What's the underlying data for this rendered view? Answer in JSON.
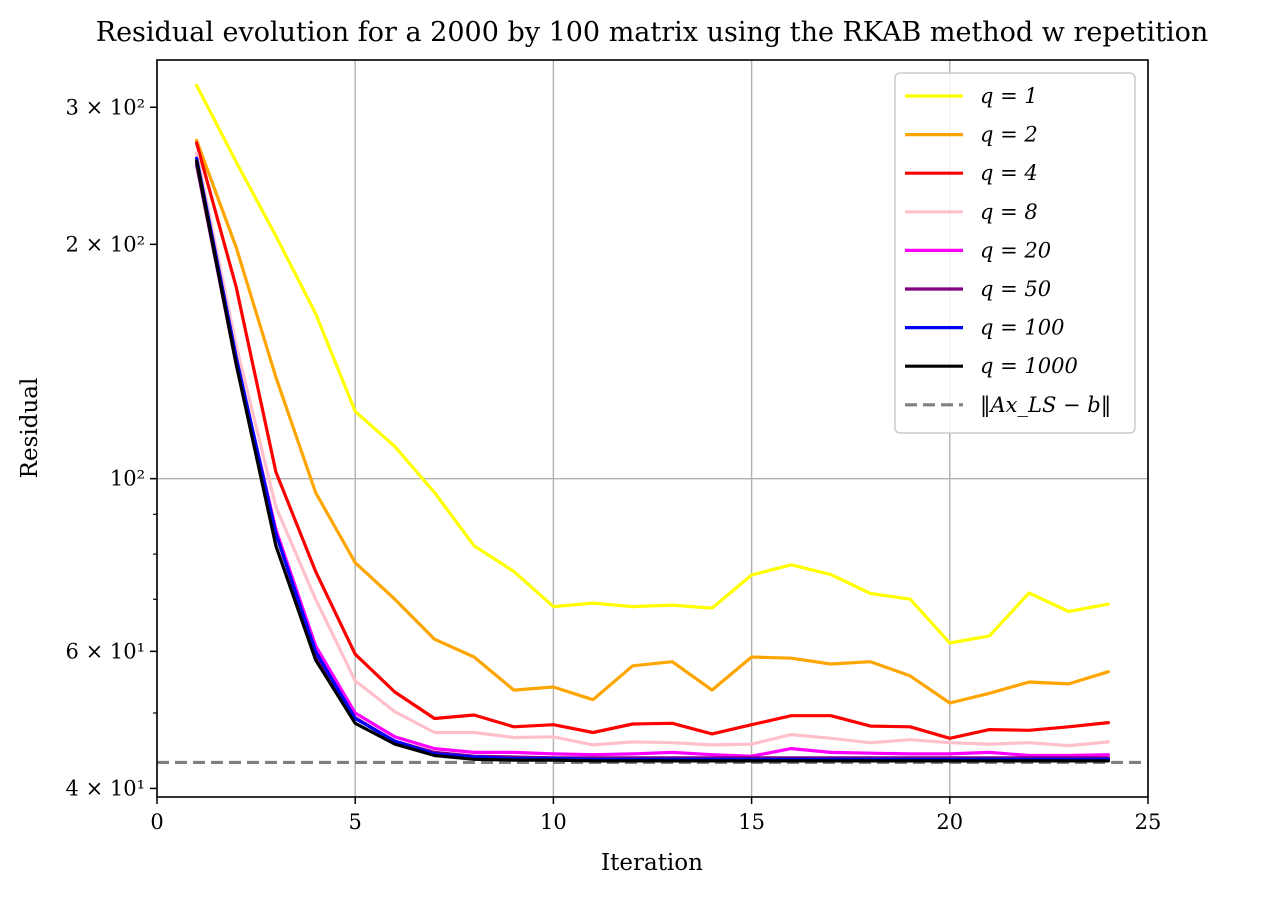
{
  "chart_data": {
    "type": "line",
    "title": "Residual evolution for a 2000 by 100 matrix using the RKAB method w repetition",
    "xlabel": "Iteration",
    "ylabel": "Residual",
    "xlim": [
      0,
      25
    ],
    "ylim": [
      39,
      345
    ],
    "yscale": "log",
    "grid": true,
    "legend_position": "upper right",
    "x_ticks": [
      {
        "value": 0,
        "label": "0"
      },
      {
        "value": 5,
        "label": "5"
      },
      {
        "value": 10,
        "label": "10"
      },
      {
        "value": 15,
        "label": "15"
      },
      {
        "value": 20,
        "label": "20"
      },
      {
        "value": 25,
        "label": "25"
      }
    ],
    "y_ticks_major": [
      {
        "value": 40,
        "label": "4 × 10¹"
      },
      {
        "value": 60,
        "label": "6 × 10¹"
      },
      {
        "value": 100,
        "label": "10²"
      },
      {
        "value": 200,
        "label": "2 × 10²"
      },
      {
        "value": 300,
        "label": "3 × 10²"
      }
    ],
    "y_ticks_minor": [
      50,
      70,
      80,
      90
    ],
    "x": [
      1,
      2,
      3,
      4,
      5,
      6,
      7,
      8,
      9,
      10,
      11,
      12,
      13,
      14,
      15,
      16,
      17,
      18,
      19,
      20,
      21,
      22,
      23,
      24
    ],
    "series": [
      {
        "name": "q = 1",
        "color": "#ffff00",
        "values": [
          320,
          255,
          205,
          163,
          122,
          110,
          96,
          82,
          76,
          68.5,
          69.2,
          68.5,
          68.8,
          68.2,
          75.2,
          77.5,
          75.3,
          71.2,
          70,
          61.5,
          62.8,
          71.3,
          67.5,
          69
        ]
      },
      {
        "name": "q = 2",
        "color": "#ffa500",
        "values": [
          272,
          198,
          135,
          96,
          78,
          70,
          62.2,
          59,
          53.5,
          54,
          52,
          57.5,
          58.2,
          53.5,
          59,
          58.8,
          57.8,
          58.2,
          55.8,
          51.5,
          53,
          54.8,
          54.5,
          56.5
        ]
      },
      {
        "name": "q = 4",
        "color": "#ff0000",
        "values": [
          270,
          176,
          102,
          76,
          59.5,
          53.2,
          49.2,
          49.7,
          48,
          48.3,
          47.2,
          48.4,
          48.5,
          47,
          48.3,
          49.6,
          49.6,
          48.1,
          48,
          46.4,
          47.6,
          47.5,
          48,
          48.6
        ]
      },
      {
        "name": "q = 8",
        "color": "#ffc0cb",
        "values": [
          262,
          148,
          92,
          70,
          55,
          50.2,
          47.2,
          47.2,
          46.5,
          46.6,
          45.5,
          45.9,
          45.8,
          45.5,
          45.6,
          46.9,
          46.4,
          45.8,
          46.2,
          45.8,
          45.6,
          45.8,
          45.4,
          45.9
        ]
      },
      {
        "name": "q = 20",
        "color": "#ff00ff",
        "values": [
          255,
          142,
          86,
          61,
          50,
          46.6,
          45,
          44.5,
          44.5,
          44.3,
          44.2,
          44.3,
          44.5,
          44.2,
          44,
          45,
          44.5,
          44.4,
          44.3,
          44.3,
          44.5,
          44.1,
          44.1,
          44.2
        ]
      },
      {
        "name": "q = 50",
        "color": "#800080",
        "values": [
          253,
          140,
          85,
          59.5,
          49.3,
          46,
          44.5,
          44,
          43.9,
          43.8,
          43.8,
          43.8,
          43.8,
          43.8,
          43.8,
          43.8,
          43.8,
          43.8,
          43.8,
          43.8,
          43.8,
          43.8,
          43.8,
          43.8
        ]
      },
      {
        "name": "q = 100",
        "color": "#0000ff",
        "values": [
          258,
          143,
          85,
          60,
          49.2,
          46,
          44.3,
          43.9,
          43.7,
          43.7,
          43.6,
          43.6,
          43.6,
          43.6,
          43.6,
          43.6,
          43.6,
          43.6,
          43.6,
          43.6,
          43.6,
          43.6,
          43.6,
          43.6
        ]
      },
      {
        "name": "q = 1000",
        "color": "#000000",
        "values": [
          256,
          140,
          82,
          58.5,
          48.5,
          45.6,
          44.1,
          43.6,
          43.5,
          43.5,
          43.4,
          43.4,
          43.4,
          43.4,
          43.4,
          43.4,
          43.4,
          43.4,
          43.4,
          43.4,
          43.4,
          43.4,
          43.4,
          43.4
        ]
      }
    ],
    "reference_line": {
      "name": "‖Ax_LS − b‖",
      "value": 43.2,
      "color": "#808080",
      "style": "dashed"
    }
  }
}
